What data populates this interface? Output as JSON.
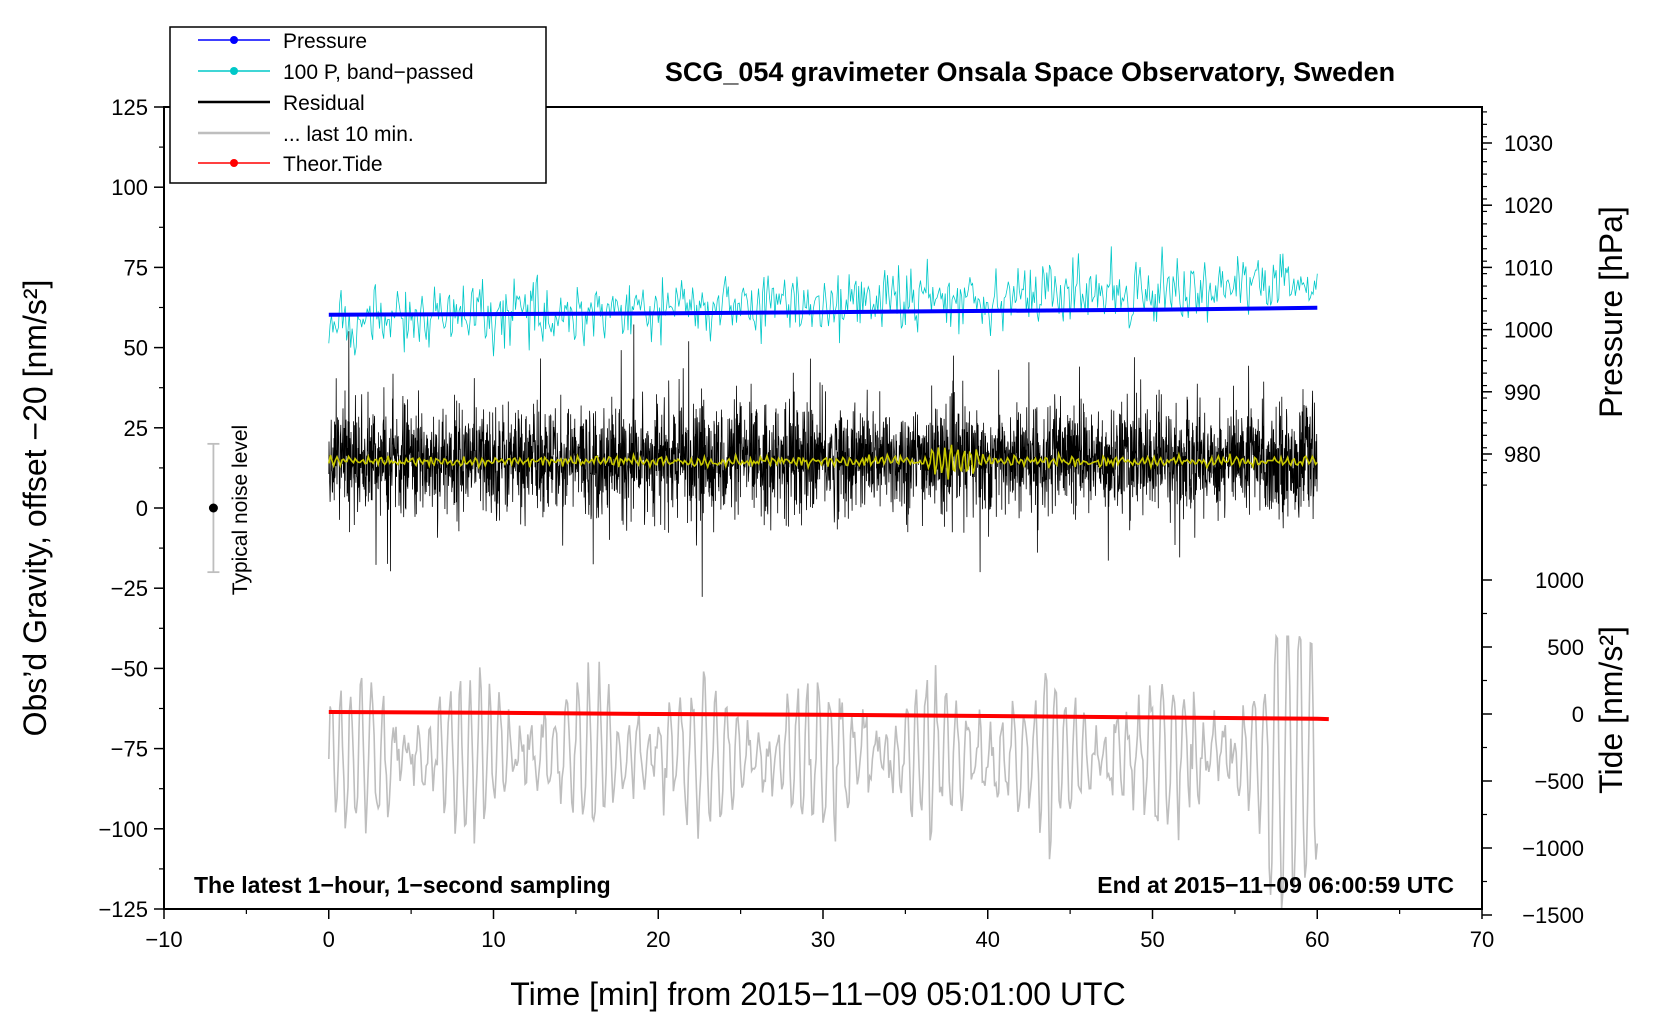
{
  "chart_data": {
    "type": "line",
    "title": "SCG_054 gravimeter Onsala Space Observatory, Sweden",
    "xlabel": "Time [min] from 2015−11−09 05:01:00 UTC",
    "ylabel_left": "Obs’d Gravity, offset −20 [nm/s²]",
    "ylabel_right_pressure": "Pressure [hPa]",
    "ylabel_right_tide": "Tide [nm/s²]",
    "xlim": [
      -10,
      70
    ],
    "ylim_left": [
      -125,
      125
    ],
    "ylim_pressure_visible": [
      975,
      1035
    ],
    "ylim_tide": [
      -1500,
      1000
    ],
    "x_ticks": [
      -10,
      0,
      10,
      20,
      30,
      40,
      50,
      60,
      70
    ],
    "x_tick_labels": [
      "−10",
      "0",
      "10",
      "20",
      "30",
      "40",
      "50",
      "60",
      "70"
    ],
    "y_ticks_left": [
      125,
      100,
      75,
      50,
      25,
      0,
      -25,
      -50,
      -75,
      -100,
      -125
    ],
    "y_tick_labels_left": [
      "125",
      "100",
      "75",
      "50",
      "25",
      "0",
      "−25",
      "−50",
      "−75",
      "−100",
      "−125"
    ],
    "pressure_ticks": [
      1030,
      1020,
      1010,
      1000,
      990,
      980
    ],
    "pressure_tick_labels": [
      "1030",
      "1020",
      "1010",
      "1000",
      "990",
      "980"
    ],
    "tide_ticks": [
      1000,
      500,
      0,
      -500,
      -1000,
      -1500
    ],
    "tide_tick_labels": [
      "1000",
      "500",
      "0",
      "−500",
      "−1000",
      "−1500"
    ],
    "legend": [
      {
        "label": "Pressure",
        "color": "#0000ff",
        "marker": true
      },
      {
        "label": "100 P, band−passed",
        "color": "#00c8c8",
        "marker": true
      },
      {
        "label": "Residual",
        "color": "#000000",
        "marker": false
      },
      {
        "label": "... last 10 min.",
        "color": "#bebebe",
        "marker": false
      },
      {
        "label": "Theor.Tide",
        "color": "#ff0000",
        "marker": true
      }
    ],
    "series": [
      {
        "name": "Pressure",
        "units": "hPa",
        "axis": "pressure",
        "color": "#0000ff",
        "x": [
          0,
          10,
          20,
          30,
          40,
          50,
          60
        ],
        "values": [
          1002.4,
          1002.5,
          1002.6,
          1002.8,
          1003.0,
          1003.2,
          1003.5
        ]
      },
      {
        "name": "100 P, band−passed",
        "units": "nm/s² (left axis)",
        "axis": "left",
        "color": "#00c8c8",
        "x": [
          0,
          60
        ],
        "mean_start": 58,
        "mean_end": 70,
        "amplitude": 5
      },
      {
        "name": "Residual",
        "units": "nm/s²",
        "axis": "left",
        "color": "#000000",
        "x": [
          0,
          60
        ],
        "mean": 15,
        "typical_range": [
          -5,
          35
        ],
        "extremes_min": -31,
        "extremes_max": 58
      },
      {
        "name": "Residual, smoothed",
        "units": "nm/s²",
        "axis": "left",
        "color": "#c8c800",
        "x": [
          0,
          60
        ],
        "mean": 14.5
      },
      {
        "name": "... last 10 min.",
        "units": "nm/s² (left axis)",
        "axis": "left",
        "color": "#bebebe",
        "x": [
          0,
          60
        ],
        "mean": -77,
        "range": [
          -125,
          -40
        ]
      },
      {
        "name": "Theor.Tide",
        "units": "nm/s²",
        "axis": "tide",
        "color": "#ff0000",
        "x": [
          0,
          10,
          20,
          30,
          40,
          50,
          60,
          60.7
        ],
        "values": [
          15,
          10,
          0,
          -5,
          -15,
          -25,
          -35,
          -38
        ]
      }
    ],
    "noise_bar": {
      "x": -7,
      "center": 0,
      "low": -20,
      "high": 20,
      "label": "Typical noise level"
    },
    "annotations": {
      "bottom_left": "The latest 1−hour, 1−second sampling",
      "bottom_right": "End at 2015−11−09 06:00:59 UTC"
    }
  }
}
